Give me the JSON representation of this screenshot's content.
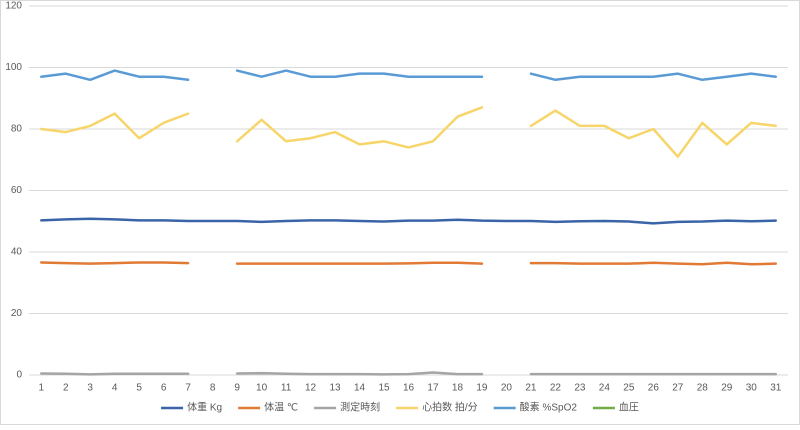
{
  "chart_data": {
    "type": "line",
    "categories": [
      "1",
      "2",
      "3",
      "4",
      "5",
      "6",
      "7",
      "8",
      "9",
      "10",
      "11",
      "12",
      "13",
      "14",
      "15",
      "16",
      "17",
      "18",
      "19",
      "20",
      "21",
      "22",
      "23",
      "24",
      "25",
      "26",
      "27",
      "28",
      "29",
      "30",
      "31"
    ],
    "series": [
      {
        "name": "体重 Kg",
        "color": "#3a64a8",
        "values": [
          50.3,
          50.6,
          50.8,
          50.6,
          50.3,
          50.3,
          50.1,
          50.1,
          50.1,
          49.8,
          50.1,
          50.3,
          50.3,
          50.1,
          49.9,
          50.2,
          50.2,
          50.5,
          50.2,
          50.1,
          50.1,
          49.8,
          50.0,
          50.1,
          49.9,
          49.3,
          49.8,
          49.9,
          50.2,
          50.0,
          50.2
        ]
      },
      {
        "name": "体温 ℃",
        "color": "#e07a35",
        "values": [
          36.6,
          36.4,
          36.2,
          36.4,
          36.6,
          36.6,
          36.4,
          null,
          36.2,
          36.2,
          36.2,
          36.2,
          36.2,
          36.2,
          36.2,
          36.3,
          36.5,
          36.5,
          36.2,
          null,
          36.4,
          36.4,
          36.2,
          36.2,
          36.2,
          36.5,
          36.2,
          36.0,
          36.5,
          36.0,
          36.2
        ]
      },
      {
        "name": "測定時刻",
        "color": "#a5a5a5",
        "values": [
          0.5,
          0.4,
          0.2,
          0.4,
          0.4,
          0.4,
          0.4,
          null,
          0.5,
          0.6,
          0.4,
          0.3,
          0.3,
          0.3,
          0.2,
          0.3,
          0.8,
          0.3,
          0.3,
          null,
          0.3,
          0.3,
          0.3,
          0.3,
          0.3,
          0.3,
          0.3,
          0.3,
          0.3,
          0.3,
          0.3
        ]
      },
      {
        "name": "心拍数 拍/分",
        "color": "#f7d56a",
        "values": [
          80,
          79,
          81,
          85,
          77,
          82,
          85,
          null,
          76,
          83,
          76,
          77,
          79,
          75,
          76,
          74,
          76,
          84,
          87,
          null,
          81,
          86,
          81,
          81,
          77,
          80,
          71,
          82,
          75,
          82,
          81
        ]
      },
      {
        "name": "酸素 %SpO2",
        "color": "#5b9bd5",
        "values": [
          97,
          98,
          96,
          99,
          97,
          97,
          96,
          null,
          99,
          97,
          99,
          97,
          97,
          98,
          98,
          97,
          97,
          97,
          97,
          null,
          98,
          96,
          97,
          97,
          97,
          97,
          98,
          96,
          97,
          98,
          97
        ]
      },
      {
        "name": "血圧",
        "color": "#70ad47",
        "values": [
          null,
          null,
          null,
          null,
          null,
          null,
          null,
          null,
          null,
          null,
          null,
          null,
          null,
          null,
          null,
          null,
          null,
          null,
          null,
          null,
          null,
          null,
          null,
          null,
          null,
          null,
          null,
          null,
          null,
          null,
          null
        ]
      }
    ],
    "ylim": [
      0,
      120
    ],
    "yticks": [
      0,
      20,
      40,
      60,
      80,
      100,
      120
    ],
    "grid": true,
    "legend": "bottom"
  }
}
